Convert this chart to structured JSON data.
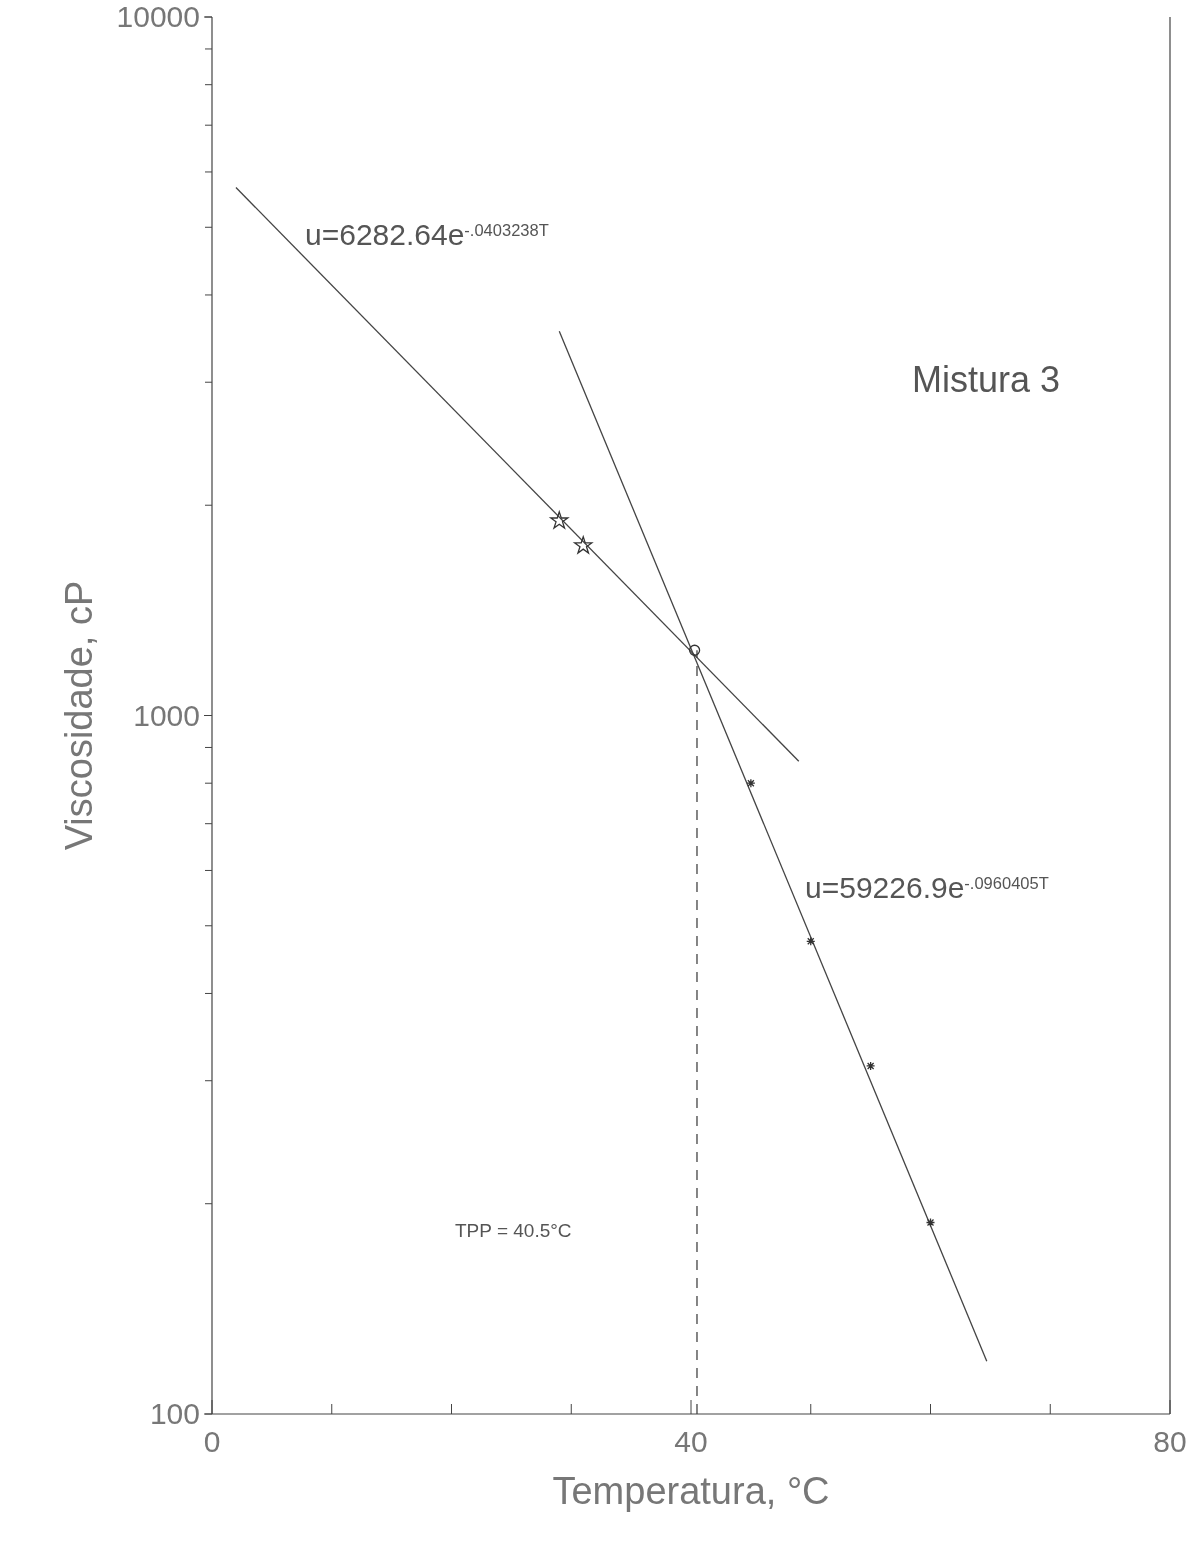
{
  "chart_data": {
    "type": "scatter",
    "title": "Mistura 3",
    "xlabel": "Temperatura, °C",
    "ylabel": "Viscosidade,  cP",
    "log": "y",
    "xlim": [
      0,
      80
    ],
    "xticks": [
      0,
      {
        "value": 10,
        "label": null
      },
      {
        "value": 20,
        "label": null
      },
      {
        "value": 30,
        "label": null
      },
      40,
      {
        "value": 50,
        "label": null
      },
      {
        "value": 60,
        "label": null
      },
      {
        "value": 70,
        "label": null
      },
      80
    ],
    "ylim": [
      100,
      10000
    ],
    "yticks": [
      100,
      {
        "value": 200,
        "label": null
      },
      {
        "value": 300,
        "label": null
      },
      {
        "value": 400,
        "label": null
      },
      {
        "value": 500,
        "label": null
      },
      {
        "value": 600,
        "label": null
      },
      {
        "value": 700,
        "label": null
      },
      {
        "value": 800,
        "label": null
      },
      {
        "value": 900,
        "label": null
      },
      1000,
      {
        "value": 2000,
        "label": null
      },
      {
        "value": 3000,
        "label": null
      },
      {
        "value": 4000,
        "label": null
      },
      {
        "value": 5000,
        "label": null
      },
      {
        "value": 6000,
        "label": null
      },
      {
        "value": 7000,
        "label": null
      },
      {
        "value": 8000,
        "label": null
      },
      {
        "value": 9000,
        "label": null
      },
      10000
    ],
    "grid": false,
    "series": [
      {
        "type": "line",
        "color": "#444444",
        "x": [
          2,
          49
        ],
        "values": [
          5700,
          860
        ],
        "marker": "none",
        "line_style": "solid"
      },
      {
        "type": "line",
        "color": "#444444",
        "x": [
          29,
          64.7
        ],
        "values": [
          3550,
          119
        ],
        "marker": "none",
        "line_style": "solid"
      },
      {
        "type": "line",
        "color": "#444444",
        "x": [
          40.5,
          40.5
        ],
        "values": [
          100,
          1240
        ],
        "marker": "none",
        "line_style": "dashed"
      },
      {
        "color": "#333333",
        "x": [
          29,
          31
        ],
        "values": [
          1900,
          1750
        ],
        "marker": "star"
      },
      {
        "color": "#333333",
        "x": [
          40.3
        ],
        "values": [
          1240
        ],
        "marker": "circle"
      },
      {
        "color": "#333333",
        "x": [
          45,
          50,
          55,
          60
        ],
        "values": [
          800,
          475,
          315,
          188
        ],
        "marker": "cross"
      }
    ],
    "annotations": [
      "u=6282.64e$^{-.0403238T}$",
      "u=59226.9e$^{-.0960405T}$",
      "TPP = 40.5°C"
    ]
  }
}
